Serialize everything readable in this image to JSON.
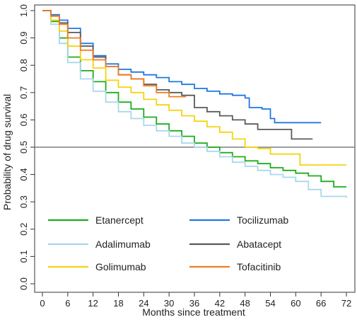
{
  "chart_data": {
    "type": "line",
    "title": "",
    "xlabel": "Months since treatment",
    "ylabel": "Probability of drug survival",
    "xlim": [
      0,
      72
    ],
    "ylim": [
      0,
      1
    ],
    "x_ticks": [
      0,
      6,
      12,
      18,
      24,
      30,
      36,
      42,
      48,
      54,
      60,
      66,
      72
    ],
    "y_ticks": [
      "0.0",
      "0.1",
      "0.2",
      "0.3",
      "0.4",
      "0.5",
      "0.6",
      "0.7",
      "0.8",
      "0.9",
      "1.0"
    ],
    "reference_line": {
      "y": 0.5,
      "color": "#7f7f7f"
    },
    "grid": false,
    "legend_position": "bottom-inside",
    "series": [
      {
        "name": "Etanercept",
        "color": "#1dac1d",
        "points": [
          [
            0,
            1.0
          ],
          [
            2,
            0.96
          ],
          [
            4,
            0.9
          ],
          [
            6,
            0.83
          ],
          [
            9,
            0.78
          ],
          [
            12,
            0.74
          ],
          [
            15,
            0.7
          ],
          [
            18,
            0.665
          ],
          [
            21,
            0.64
          ],
          [
            24,
            0.61
          ],
          [
            27,
            0.585
          ],
          [
            30,
            0.56
          ],
          [
            33,
            0.54
          ],
          [
            36,
            0.515
          ],
          [
            39,
            0.5
          ],
          [
            42,
            0.48
          ],
          [
            45,
            0.465
          ],
          [
            48,
            0.45
          ],
          [
            51,
            0.44
          ],
          [
            54,
            0.425
          ],
          [
            57,
            0.415
          ],
          [
            60,
            0.405
          ],
          [
            63,
            0.395
          ],
          [
            66,
            0.375
          ],
          [
            69,
            0.355
          ],
          [
            72,
            0.355
          ]
        ]
      },
      {
        "name": "Adalimumab",
        "color": "#a8d8ea",
        "points": [
          [
            0,
            1.0
          ],
          [
            2,
            0.95
          ],
          [
            4,
            0.88
          ],
          [
            6,
            0.81
          ],
          [
            9,
            0.75
          ],
          [
            12,
            0.705
          ],
          [
            15,
            0.665
          ],
          [
            18,
            0.63
          ],
          [
            21,
            0.605
          ],
          [
            24,
            0.58
          ],
          [
            27,
            0.56
          ],
          [
            30,
            0.54
          ],
          [
            33,
            0.515
          ],
          [
            36,
            0.5
          ],
          [
            39,
            0.485
          ],
          [
            42,
            0.465
          ],
          [
            45,
            0.445
          ],
          [
            48,
            0.43
          ],
          [
            51,
            0.415
          ],
          [
            54,
            0.4
          ],
          [
            57,
            0.39
          ],
          [
            60,
            0.375
          ],
          [
            63,
            0.345
          ],
          [
            66,
            0.32
          ],
          [
            72,
            0.315
          ]
        ]
      },
      {
        "name": "Golimumab",
        "color": "#f5d30f",
        "points": [
          [
            0,
            1.0
          ],
          [
            2,
            0.965
          ],
          [
            4,
            0.925
          ],
          [
            6,
            0.87
          ],
          [
            9,
            0.82
          ],
          [
            12,
            0.79
          ],
          [
            15,
            0.745
          ],
          [
            18,
            0.72
          ],
          [
            21,
            0.7
          ],
          [
            24,
            0.675
          ],
          [
            27,
            0.655
          ],
          [
            30,
            0.635
          ],
          [
            33,
            0.615
          ],
          [
            36,
            0.595
          ],
          [
            39,
            0.575
          ],
          [
            42,
            0.555
          ],
          [
            45,
            0.53
          ],
          [
            48,
            0.5
          ],
          [
            51,
            0.495
          ],
          [
            54,
            0.475
          ],
          [
            60,
            0.475
          ],
          [
            61,
            0.435
          ],
          [
            72,
            0.435
          ]
        ]
      },
      {
        "name": "Tocilizumab",
        "color": "#1f78e0",
        "points": [
          [
            0,
            1.0
          ],
          [
            2,
            0.985
          ],
          [
            4,
            0.965
          ],
          [
            6,
            0.935
          ],
          [
            9,
            0.88
          ],
          [
            12,
            0.835
          ],
          [
            15,
            0.805
          ],
          [
            18,
            0.785
          ],
          [
            21,
            0.775
          ],
          [
            24,
            0.765
          ],
          [
            27,
            0.755
          ],
          [
            30,
            0.74
          ],
          [
            33,
            0.73
          ],
          [
            36,
            0.715
          ],
          [
            39,
            0.705
          ],
          [
            42,
            0.695
          ],
          [
            45,
            0.69
          ],
          [
            48,
            0.68
          ],
          [
            49,
            0.645
          ],
          [
            52,
            0.64
          ],
          [
            54,
            0.605
          ],
          [
            55,
            0.59
          ],
          [
            57,
            0.59
          ],
          [
            58,
            0.59
          ],
          [
            58,
            0.59
          ],
          [
            66,
            0.59
          ]
        ]
      },
      {
        "name": "Abatacept",
        "color": "#5a5a5a",
        "points": [
          [
            0,
            1.0
          ],
          [
            2,
            0.98
          ],
          [
            4,
            0.955
          ],
          [
            6,
            0.92
          ],
          [
            9,
            0.87
          ],
          [
            12,
            0.83
          ],
          [
            15,
            0.795
          ],
          [
            18,
            0.765
          ],
          [
            21,
            0.75
          ],
          [
            24,
            0.73
          ],
          [
            27,
            0.71
          ],
          [
            30,
            0.7
          ],
          [
            33,
            0.69
          ],
          [
            36,
            0.645
          ],
          [
            39,
            0.63
          ],
          [
            42,
            0.615
          ],
          [
            45,
            0.6
          ],
          [
            48,
            0.585
          ],
          [
            51,
            0.565
          ],
          [
            54,
            0.565
          ],
          [
            59,
            0.565
          ],
          [
            59,
            0.53
          ],
          [
            64,
            0.53
          ]
        ]
      },
      {
        "name": "Tofacitinib",
        "color": "#f07d22",
        "points": [
          [
            0,
            1.0
          ],
          [
            2,
            0.98
          ],
          [
            4,
            0.95
          ],
          [
            6,
            0.9
          ],
          [
            9,
            0.855
          ],
          [
            12,
            0.82
          ],
          [
            15,
            0.795
          ],
          [
            18,
            0.765
          ],
          [
            21,
            0.75
          ],
          [
            24,
            0.725
          ],
          [
            27,
            0.7
          ],
          [
            28,
            0.7
          ],
          [
            30,
            0.685
          ],
          [
            34,
            0.685
          ]
        ]
      }
    ]
  }
}
